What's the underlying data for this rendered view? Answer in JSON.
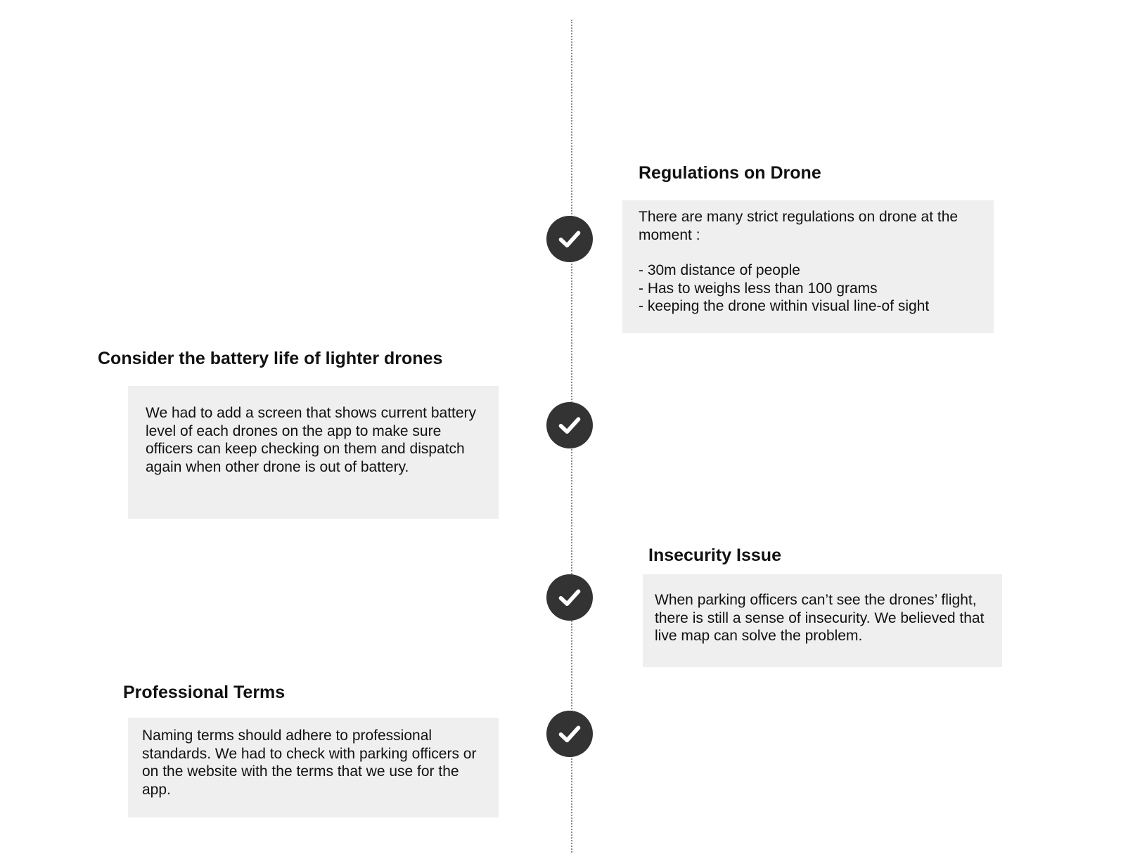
{
  "items": [
    {
      "title": "Regulations on Drone",
      "intro": "There are many strict regulations on drone at the moment :",
      "bullets": [
        "- 30m distance of people",
        "- Has to weighs less than 100 grams",
        "- keeping the drone within visual line-of sight"
      ]
    },
    {
      "title": "Consider the battery life of lighter drones",
      "body": "We had to add a screen that shows current battery level of each drones on the app to make sure officers can keep checking on them and dispatch again when other drone is out of battery."
    },
    {
      "title": "Insecurity Issue",
      "body": "When parking officers can’t see the drones’ flight, there is still a sense of insecurity. We believed that live map can solve the problem."
    },
    {
      "title": "Professional Terms",
      "body": "Naming terms should adhere to professional standards. We had to check with parking officers or on the website with the terms that we use for the app."
    }
  ],
  "icons": {
    "milestone": "check-circle-icon"
  },
  "colors": {
    "line": "#8a8a8a",
    "check_circle": "#333333",
    "box_background": "#efefef",
    "text": "#111111"
  }
}
